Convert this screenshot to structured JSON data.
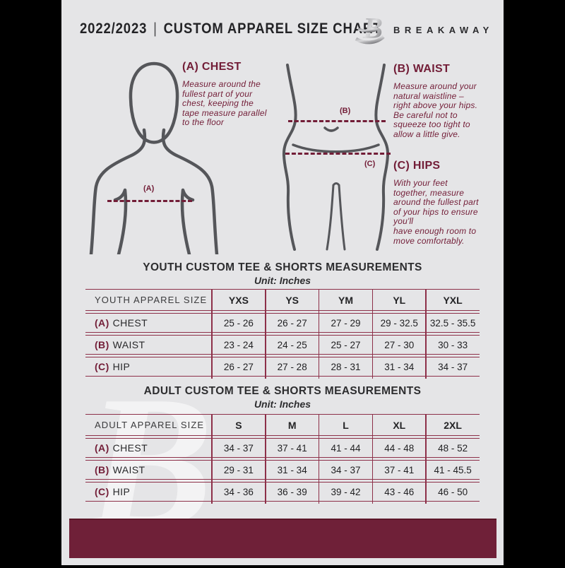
{
  "header": {
    "year": "2022/2023",
    "sep": "|",
    "title": "CUSTOM APPAREL SIZE CHART",
    "brand": "BREAKAWAY",
    "logo_letter": "B"
  },
  "instructions": [
    {
      "id": "A",
      "label": "(A) CHEST",
      "text": "Measure around the\nfullest part of your\nchest, keeping the\ntape measure parallel\nto the floor"
    },
    {
      "id": "B",
      "label": "(B) WAIST",
      "text": "Measure around your\nnatural waistline –\nright above your hips.\nBe careful not to\nsqueeze too tight to\nallow a little give."
    },
    {
      "id": "C",
      "label": "(C) HIPS",
      "text": "With your feet\ntogether, measure\naround the fullest part\nof your hips to ensure\nyou'll\nhave enough room to\nmove comfortably."
    }
  ],
  "figures": {
    "chest_label": "(A)",
    "waist_label": "(B)",
    "hips_label": "(C)"
  },
  "youth_table": {
    "title": "YOUTH CUSTOM TEE & SHORTS MEASUREMENTS",
    "unit": "Unit: Inches",
    "header": [
      "YOUTH APPAREL SIZE",
      "YXS",
      "YS",
      "YM",
      "YL",
      "YXL"
    ],
    "rows": [
      {
        "prefix": "(A)",
        "label": "CHEST",
        "values": [
          "25 - 26",
          "26 - 27",
          "27 - 29",
          "29 - 32.5",
          "32.5 - 35.5"
        ]
      },
      {
        "prefix": "(B)",
        "label": "WAIST",
        "values": [
          "23 - 24",
          "24 - 25",
          "25 - 27",
          "27 - 30",
          "30 - 33"
        ]
      },
      {
        "prefix": "(C)",
        "label": "HIP",
        "values": [
          "26 - 27",
          "27 - 28",
          "28 - 31",
          "31 - 34",
          "34 - 37"
        ]
      }
    ]
  },
  "adult_table": {
    "title": "ADULT CUSTOM TEE & SHORTS MEASUREMENTS",
    "unit": "Unit: Inches",
    "header": [
      "ADULT APPAREL SIZE",
      "S",
      "M",
      "L",
      "XL",
      "2XL"
    ],
    "rows": [
      {
        "prefix": "(A)",
        "label": "CHEST",
        "values": [
          "34 - 37",
          "37 - 41",
          "41 - 44",
          "44 - 48",
          "48 - 52"
        ]
      },
      {
        "prefix": "(B)",
        "label": "WAIST",
        "values": [
          "29 - 31",
          "31 - 34",
          "34 - 37",
          "37 - 41",
          "41 - 45.5"
        ]
      },
      {
        "prefix": "(C)",
        "label": "HIP",
        "values": [
          "34 - 36",
          "36 - 39",
          "39 - 42",
          "43 - 46",
          "46 - 50"
        ]
      }
    ]
  },
  "colors": {
    "accent_maroon": "#721d37",
    "table_line": "#8d3049",
    "footer_bar": "#6f2038",
    "page_background": "#e5e5e7",
    "figure_gray": "#55565a"
  }
}
